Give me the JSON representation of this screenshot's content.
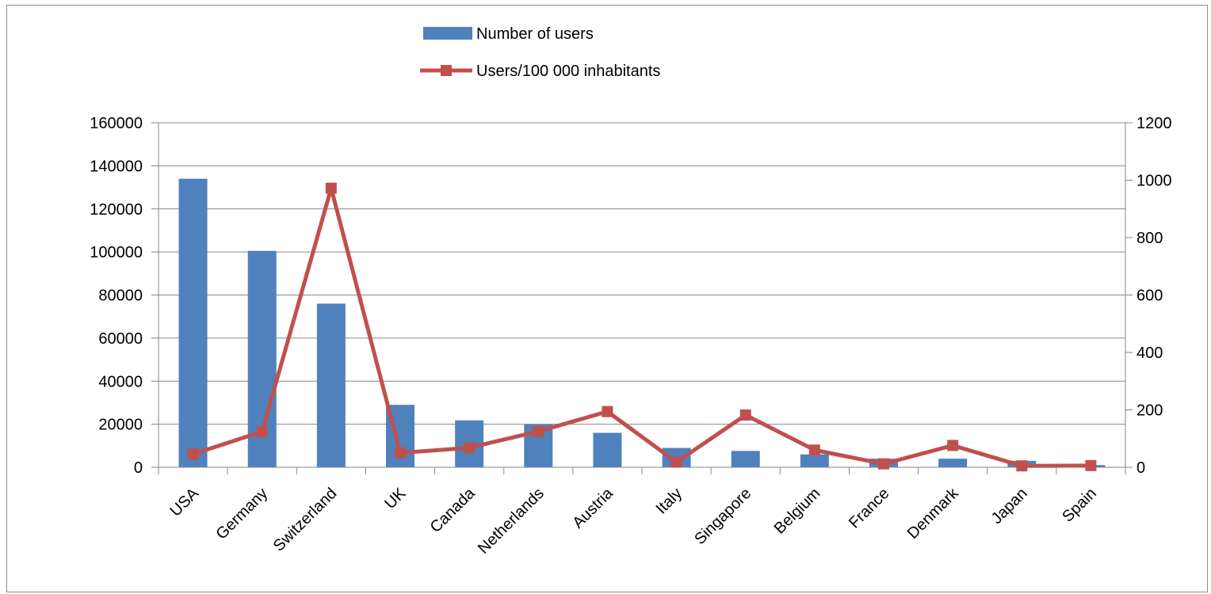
{
  "chart_data": {
    "type": "bar",
    "categories": [
      "USA",
      "Germany",
      "Switzerland",
      "UK",
      "Canada",
      "Netherlands",
      "Austria",
      "Italy",
      "Singapore",
      "Belgium",
      "France",
      "Denmark",
      "Japan",
      "Spain"
    ],
    "series": [
      {
        "name": "Number of users",
        "type": "bar",
        "axis": "left",
        "color": "#4f81bd",
        "values": [
          134000,
          100500,
          76000,
          29000,
          21800,
          20000,
          16000,
          9000,
          7600,
          6000,
          4000,
          4000,
          3000,
          1000
        ]
      },
      {
        "name": "Users/100 000 inhabitants",
        "type": "line",
        "axis": "right",
        "color": "#c0504d",
        "marker": "square",
        "values": [
          46,
          124,
          972,
          50,
          68,
          125,
          194,
          18,
          182,
          60,
          12,
          76,
          5,
          6
        ]
      }
    ],
    "y_left": {
      "min": 0,
      "max": 160000,
      "step": 20000,
      "ticks": [
        "0",
        "20000",
        "40000",
        "60000",
        "80000",
        "100000",
        "120000",
        "140000",
        "160000"
      ]
    },
    "y_right": {
      "min": 0,
      "max": 1200,
      "step": 200,
      "ticks": [
        "0",
        "200",
        "400",
        "600",
        "800",
        "1000",
        "1200"
      ]
    },
    "grid": true,
    "legend_position": "top-center",
    "xlabel": "",
    "ylabel": "",
    "title": ""
  }
}
